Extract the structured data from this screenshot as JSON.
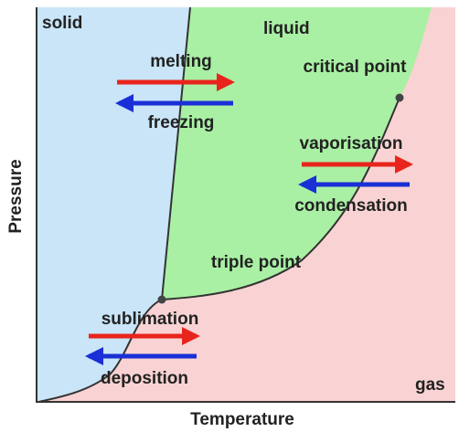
{
  "regions": {
    "solid": "solid",
    "liquid": "liquid",
    "gas": "gas"
  },
  "points": {
    "critical": "critical point",
    "triple": "triple point"
  },
  "processes": {
    "melting": "melting",
    "freezing": "freezing",
    "vaporisation": "vaporisation",
    "condensation": "condensation",
    "sublimation": "sublimation",
    "deposition": "deposition"
  },
  "axes": {
    "x": "Temperature",
    "y": "Pressure"
  }
}
